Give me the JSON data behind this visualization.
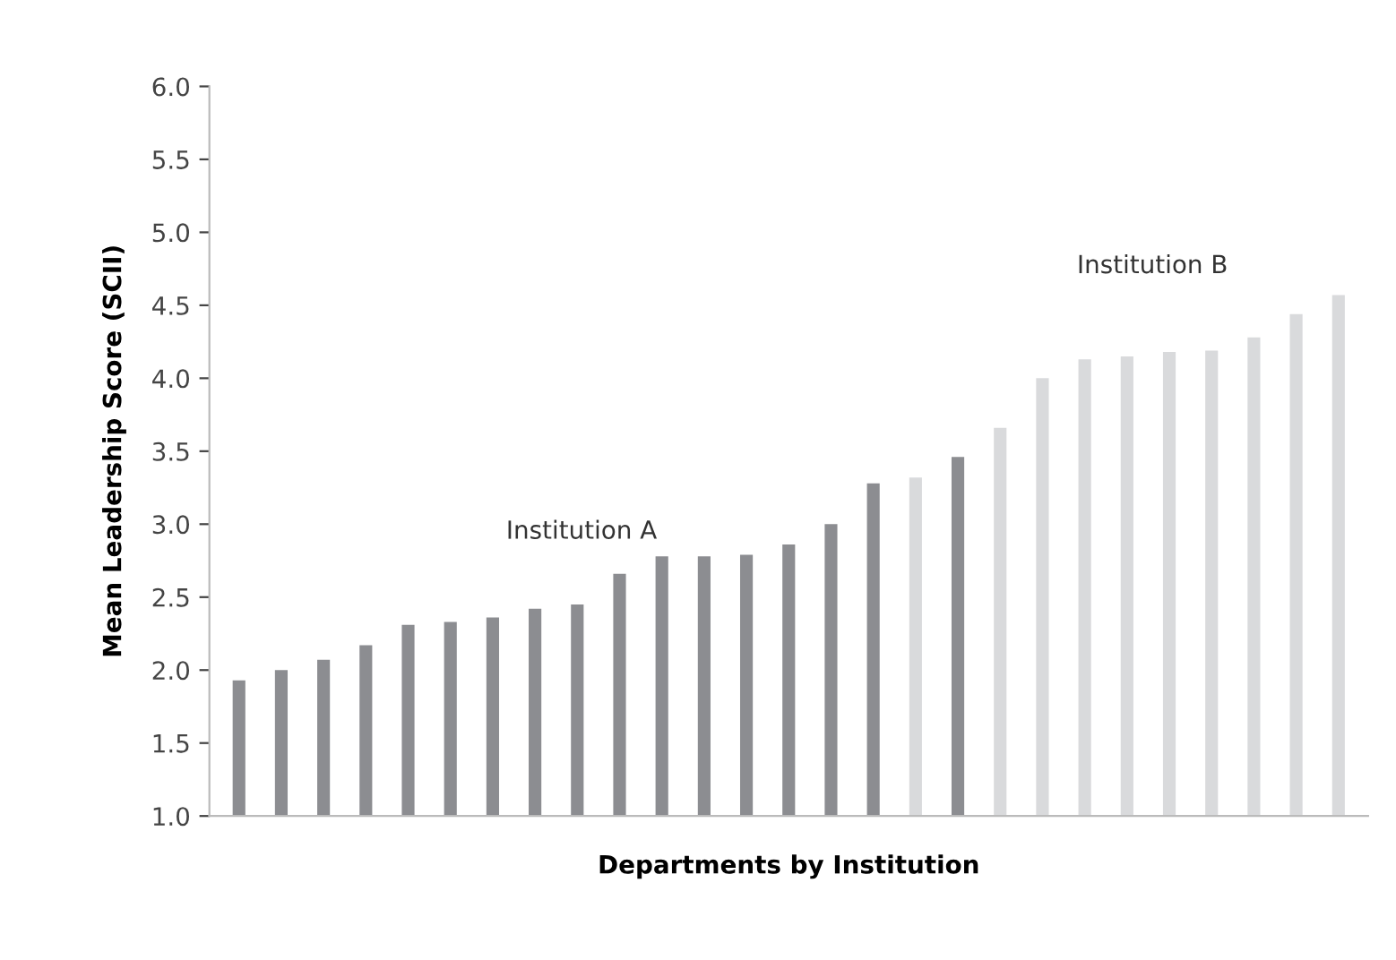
{
  "chart_data": {
    "type": "bar",
    "xlabel": "Departments by Institution",
    "ylabel": "Mean Leadership Score (SCII)",
    "categories": [
      null,
      null,
      null,
      null,
      null,
      null,
      null,
      null,
      null,
      null,
      null,
      null,
      null,
      null,
      null,
      null,
      null,
      null,
      null,
      null,
      null,
      null,
      null,
      null,
      null,
      null,
      null
    ],
    "values": [
      1.93,
      2.0,
      2.07,
      2.17,
      2.31,
      2.33,
      2.36,
      2.42,
      2.45,
      2.66,
      2.78,
      2.78,
      2.79,
      2.86,
      3.0,
      3.28,
      3.32,
      3.46,
      3.66,
      4.0,
      4.13,
      4.15,
      4.18,
      4.19,
      4.28,
      4.44,
      4.57
    ],
    "colors": [
      "#8c8d91",
      "#8c8d91",
      "#8c8d91",
      "#8c8d91",
      "#8c8d91",
      "#8c8d91",
      "#8c8d91",
      "#8c8d91",
      "#8c8d91",
      "#8c8d91",
      "#8c8d91",
      "#8c8d91",
      "#8c8d91",
      "#8c8d91",
      "#8c8d91",
      "#8c8d91",
      "#d9dadc",
      "#8c8d91",
      "#d9dadc",
      "#d9dadc",
      "#d9dadc",
      "#d9dadc",
      "#d9dadc",
      "#d9dadc",
      "#d9dadc",
      "#d9dadc",
      "#d9dadc"
    ],
    "annotations": [
      "Institution A",
      "Institution B"
    ],
    "ylim": [
      1.0,
      6.0
    ],
    "yticks": [
      {
        "value": 1.0,
        "label": "1.0"
      },
      {
        "value": 1.5,
        "label": "1.5"
      },
      {
        "value": 2.0,
        "label": "2.0"
      },
      {
        "value": 2.5,
        "label": "2.5"
      },
      {
        "value": 3.0,
        "label": "3.0"
      },
      {
        "value": 3.5,
        "label": "3.5"
      },
      {
        "value": 4.0,
        "label": "4.0"
      },
      {
        "value": 4.5,
        "label": "4.5"
      },
      {
        "value": 5.0,
        "label": "5.0"
      },
      {
        "value": 5.5,
        "label": "5.5"
      },
      {
        "value": 6.0,
        "label": "6.0"
      }
    ],
    "grid": false
  }
}
